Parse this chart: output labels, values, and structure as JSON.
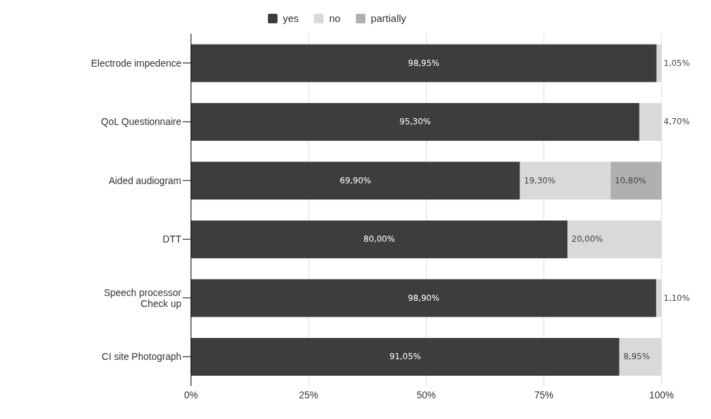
{
  "chart_data": {
    "type": "bar",
    "orientation": "horizontal",
    "stacked": true,
    "categories": [
      "Electrode impedence",
      "QoL Questionnaire",
      "Aided audiogram",
      "DTT",
      "Speech processor Check up",
      "CI site Photograph"
    ],
    "series": [
      {
        "name": "yes",
        "color": "#3d3d3d",
        "values": [
          98.95,
          95.3,
          69.9,
          80,
          98.9,
          91.05
        ],
        "value_labels": [
          "98,95%",
          "95,30%",
          "69,90%",
          "80,00%",
          "98,90%",
          "91,05%"
        ]
      },
      {
        "name": "no",
        "color": "#d9d9d9",
        "values": [
          1.05,
          4.7,
          19.3,
          20,
          1.1,
          8.95
        ],
        "value_labels": [
          "1,05%",
          "4,70%",
          "19,30%",
          "20,00%",
          "1,10%",
          "8,95%"
        ]
      },
      {
        "name": "partially",
        "color": "#b0b0b0",
        "values": [
          null,
          null,
          10.8,
          null,
          null,
          null
        ],
        "value_labels": [
          null,
          null,
          "10,80%",
          null,
          null,
          null
        ]
      }
    ],
    "xlim": [
      0,
      100
    ],
    "xticks": [
      {
        "value": 0,
        "label": "0%"
      },
      {
        "value": 25,
        "label": "25%"
      },
      {
        "value": 50,
        "label": "50%"
      },
      {
        "value": 75,
        "label": "75%"
      },
      {
        "value": 100,
        "label": "100%"
      }
    ],
    "grid": "x",
    "legend": "top"
  }
}
